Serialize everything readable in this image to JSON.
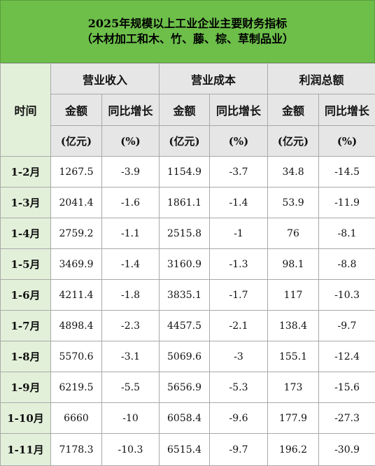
{
  "title": {
    "line1": "2025年规模以上工业企业主要财务指标",
    "line2": "（木材加工和木、竹、藤、棕、草制品业）"
  },
  "header": {
    "time": "时间",
    "groups": [
      "营业收入",
      "营业成本",
      "利润总额"
    ],
    "sub": [
      "金额",
      "同比增长"
    ],
    "units": [
      "(亿元)",
      "(%)"
    ]
  },
  "rows": [
    {
      "month": "1-2月",
      "cells": [
        "1267.5",
        "-3.9",
        "1154.9",
        "-3.7",
        "34.8",
        "-14.5"
      ]
    },
    {
      "month": "1-3月",
      "cells": [
        "2041.4",
        "-1.6",
        "1861.1",
        "-1.4",
        "53.9",
        "-11.9"
      ]
    },
    {
      "month": "1-4月",
      "cells": [
        "2759.2",
        "-1.1",
        "2515.8",
        "-1",
        "76",
        "-8.1"
      ]
    },
    {
      "month": "1-5月",
      "cells": [
        "3469.9",
        "-1.4",
        "3160.9",
        "-1.3",
        "98.1",
        "-8.8"
      ]
    },
    {
      "month": "1-6月",
      "cells": [
        "4211.4",
        "-1.8",
        "3835.1",
        "-1.7",
        "117",
        "-10.3"
      ]
    },
    {
      "month": "1-7月",
      "cells": [
        "4898.4",
        "-2.3",
        "4457.5",
        "-2.1",
        "138.4",
        "-9.7"
      ]
    },
    {
      "month": "1-8月",
      "cells": [
        "5570.6",
        "-3.1",
        "5069.6",
        "-3",
        "155.1",
        "-12.4"
      ]
    },
    {
      "month": "1-9月",
      "cells": [
        "6219.5",
        "-5.5",
        "5656.9",
        "-5.3",
        "173",
        "-15.6"
      ]
    },
    {
      "month": "1-10月",
      "cells": [
        "6660",
        "-10",
        "6058.4",
        "-9.6",
        "177.9",
        "-27.3"
      ]
    },
    {
      "month": "1-11月",
      "cells": [
        "7178.3",
        "-10.3",
        "6515.4",
        "-9.7",
        "196.2",
        "-30.9"
      ]
    }
  ],
  "colors": {
    "title_bg": "#6dbf4a",
    "header_bg": "#e6e6e6",
    "time_col_bg": "#e2f0d9",
    "border": "#a9a9a9"
  }
}
